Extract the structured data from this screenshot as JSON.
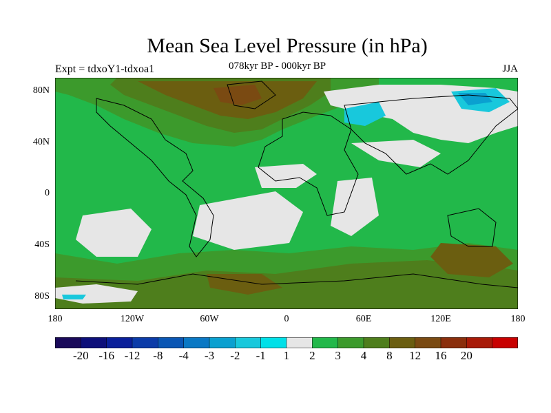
{
  "title": "Mean Sea Level Pressure (in hPa)",
  "experiment": "Expt = tdxoY1-tdxoa1",
  "period": "078kyr BP - 000kyr BP",
  "season": "JJA",
  "lat_ticks": [
    "80N",
    "40N",
    "0",
    "40S",
    "80S"
  ],
  "lon_ticks": [
    "180",
    "120W",
    "60W",
    "0",
    "60E",
    "120E",
    "180"
  ],
  "colorbar": {
    "labels": [
      "-20",
      "-16",
      "-12",
      "-8",
      "-4",
      "-3",
      "-2",
      "-1",
      "1",
      "2",
      "3",
      "4",
      "8",
      "12",
      "16",
      "20"
    ],
    "colors": [
      "#1a0a5a",
      "#0d0f7a",
      "#0a1f9a",
      "#0b3ba8",
      "#0a56b4",
      "#0a78c4",
      "#0aa0d0",
      "#18c8dc",
      "#00e0e8",
      "#e6e6e6",
      "#22b84a",
      "#3c9a2c",
      "#4e7e1c",
      "#6b5e10",
      "#7a4a12",
      "#8a2e0c",
      "#a81a08",
      "#c80000"
    ]
  }
}
